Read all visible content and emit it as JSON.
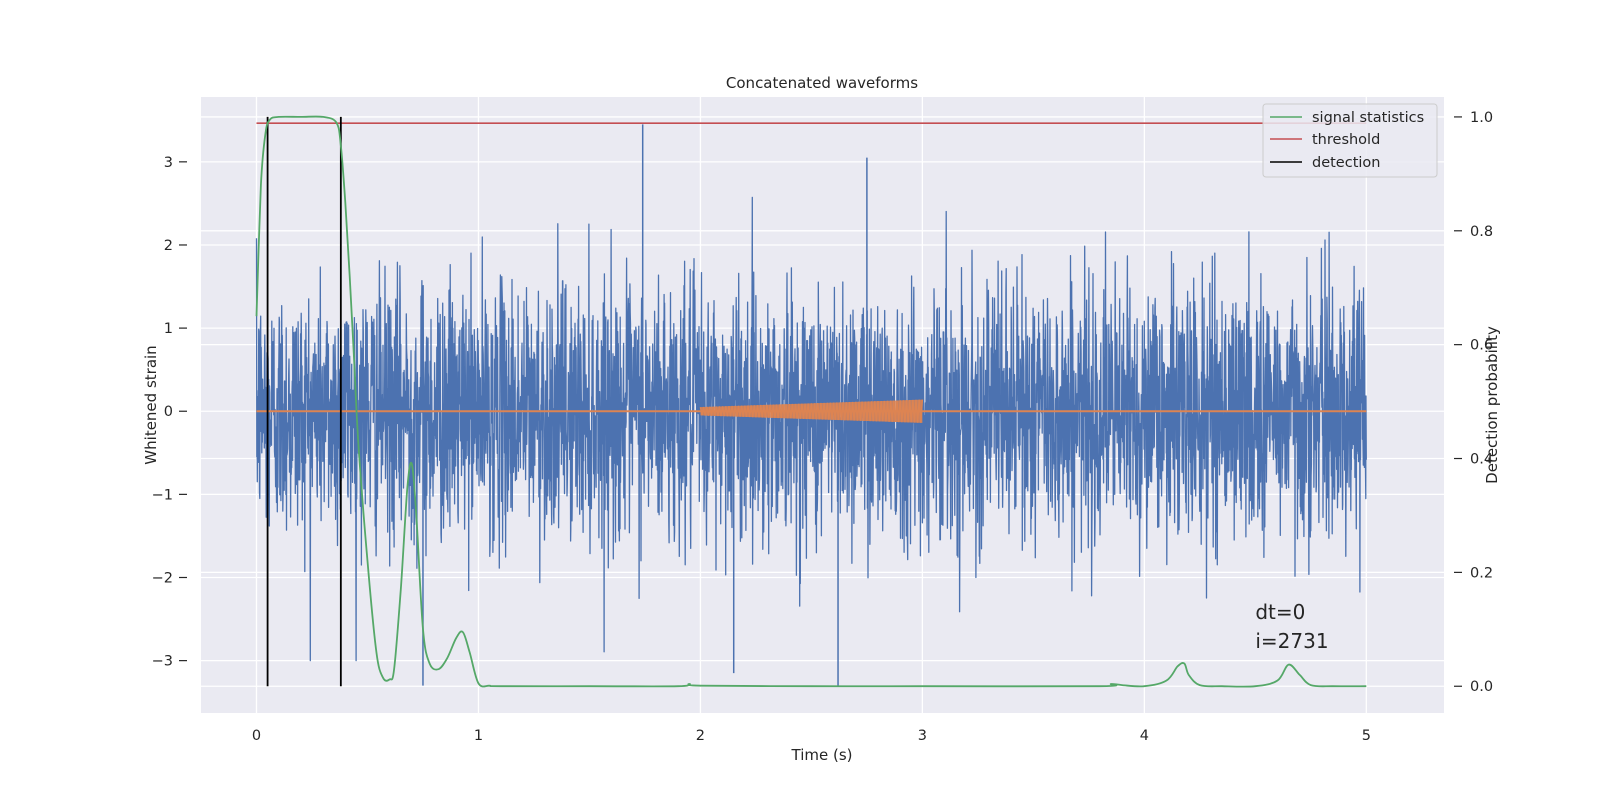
{
  "chart_data": {
    "type": "line",
    "title": "Concatenated waveforms",
    "xlabel": "Time (s)",
    "ylabel": "Whitened strain",
    "y2label": "Detection probability",
    "xlim": [
      -0.25,
      5.35
    ],
    "ylim": [
      -3.63,
      3.78
    ],
    "y2lim": [
      -0.047,
      1.035
    ],
    "xticks": [
      0,
      1,
      2,
      3,
      4,
      5
    ],
    "yticks": [
      -3,
      -2,
      -1,
      0,
      1,
      2,
      3
    ],
    "y2ticks": [
      0.0,
      0.2,
      0.4,
      0.6,
      0.8,
      1.0
    ],
    "xtick_labels": [
      "0",
      "1",
      "2",
      "3",
      "4",
      "5"
    ],
    "ytick_labels": [
      "−3",
      "−2",
      "−1",
      "0",
      "1",
      "2",
      "3"
    ],
    "y2tick_labels": [
      "0.0",
      "0.2",
      "0.4",
      "0.6",
      "0.8",
      "1.0"
    ],
    "grid": true,
    "legend_position": "top-right",
    "colors": {
      "strain": "#4c72b0",
      "template": "#dd8452",
      "signal_statistics": "#55a868",
      "threshold": "#c44e52",
      "detection": "#000000",
      "plot_background": "#eaeaf2",
      "grid": "#ffffff"
    },
    "series": [
      {
        "name": "",
        "role": "strain",
        "axis": "left",
        "x_range": [
          0,
          5
        ],
        "typical_std": 0.75,
        "notable_peaks": [
          {
            "x": 1.74,
            "y": 3.45
          },
          {
            "x": 2.75,
            "y": 3.05
          },
          {
            "x": 0.75,
            "y": -3.3
          },
          {
            "x": 2.62,
            "y": -3.3
          },
          {
            "x": 2.15,
            "y": -3.15
          }
        ]
      },
      {
        "name": "",
        "role": "template",
        "axis": "left",
        "x": [
          0,
          2.0,
          2.0,
          3.0,
          3.0,
          5.0
        ],
        "y": [
          0,
          0,
          0.05,
          0.14,
          0,
          0
        ]
      },
      {
        "name": "signal statistics",
        "role": "signal_statistics",
        "axis": "right",
        "x": [
          0,
          0.02,
          0.04,
          0.06,
          0.1,
          0.2,
          0.3,
          0.36,
          0.38,
          0.4,
          0.42,
          0.44,
          0.46,
          0.5,
          0.54,
          0.57,
          0.6,
          0.62,
          0.65,
          0.68,
          0.7,
          0.72,
          0.75,
          0.78,
          0.82,
          0.86,
          0.9,
          0.93,
          0.96,
          1.0,
          1.05,
          1.1,
          1.5,
          1.9,
          1.95,
          2.0,
          2.5,
          3.0,
          3.8,
          3.85,
          3.9,
          4.0,
          4.1,
          4.15,
          4.18,
          4.2,
          4.25,
          4.35,
          4.5,
          4.6,
          4.65,
          4.7,
          4.75,
          4.85,
          5.0
        ],
        "y": [
          0.65,
          0.88,
          0.97,
          0.995,
          1.0,
          1.0,
          1.0,
          0.99,
          0.95,
          0.85,
          0.72,
          0.57,
          0.42,
          0.22,
          0.06,
          0.015,
          0.012,
          0.03,
          0.17,
          0.35,
          0.39,
          0.3,
          0.1,
          0.04,
          0.03,
          0.05,
          0.085,
          0.095,
          0.06,
          0.005,
          0.001,
          0.0,
          0.0,
          0.0,
          0.004,
          0.001,
          0.0,
          0.0,
          0.0,
          0.004,
          0.002,
          0.0,
          0.01,
          0.035,
          0.04,
          0.02,
          0.002,
          0.0,
          0.0,
          0.01,
          0.038,
          0.02,
          0.002,
          0.0,
          0.0
        ]
      },
      {
        "name": "threshold",
        "role": "threshold",
        "axis": "right",
        "x": [
          0,
          5
        ],
        "y": [
          0.989,
          0.989
        ]
      },
      {
        "name": "detection",
        "role": "detection",
        "axis": "right",
        "x_values": [
          0.05,
          0.38
        ],
        "y_range": [
          0.0,
          1.0
        ]
      }
    ],
    "annotations": [
      {
        "text": "dt=0",
        "x": 4.5,
        "y": -2.5
      },
      {
        "text": "i=2731",
        "x": 4.5,
        "y": -2.85
      }
    ]
  }
}
